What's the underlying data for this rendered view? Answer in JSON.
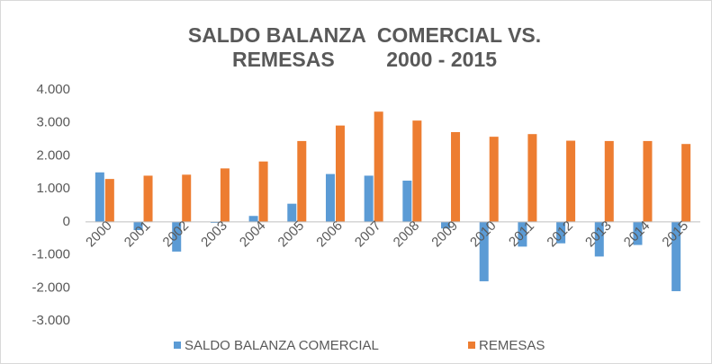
{
  "chart_data": {
    "type": "bar",
    "title": [
      "SALDO BALANZA  COMERCIAL VS.",
      "REMESAS         2000 - 2015"
    ],
    "categories": [
      "2000",
      "2001",
      "2002",
      "2003",
      "2004",
      "2005",
      "2006",
      "2007",
      "2008",
      "2009",
      "2010",
      "2011",
      "2012",
      "2013",
      "2014",
      "2015"
    ],
    "series": [
      {
        "name": "SALDO BALANZA COMERCIAL",
        "color": "#5b9bd5",
        "values": [
          1500,
          -250,
          -900,
          -30,
          180,
          550,
          1450,
          1400,
          1250,
          -200,
          -1800,
          -750,
          -650,
          -1050,
          -700,
          -2100
        ]
      },
      {
        "name": "REMESAS",
        "color": "#ed7d31",
        "values": [
          1300,
          1400,
          1430,
          1620,
          1830,
          2450,
          2920,
          3340,
          3070,
          2720,
          2580,
          2660,
          2460,
          2450,
          2450,
          2360
        ]
      }
    ],
    "ylim": [
      -3000,
      4000
    ],
    "yticks": [
      {
        "value": -3000,
        "label": "-3.000"
      },
      {
        "value": -2000,
        "label": "-2.000"
      },
      {
        "value": -1000,
        "label": "-1.000"
      },
      0,
      {
        "value": 1000,
        "label": "1.000"
      },
      {
        "value": 2000,
        "label": "2.000"
      },
      {
        "value": 3000,
        "label": "3.000"
      },
      {
        "value": 4000,
        "label": "4.000"
      }
    ],
    "legend": "bottom"
  }
}
